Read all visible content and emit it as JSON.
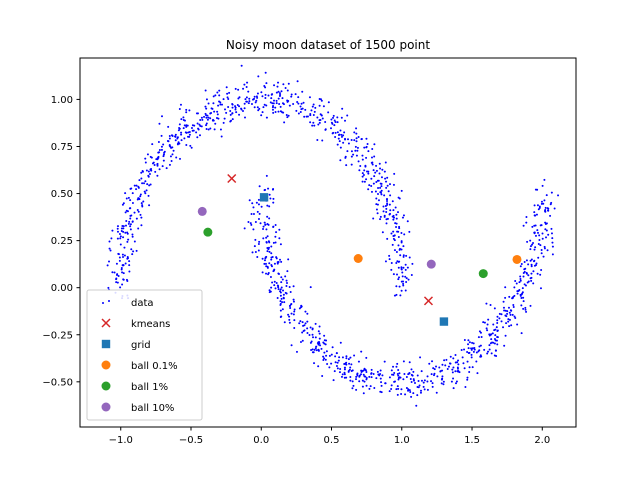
{
  "chart_data": {
    "type": "scatter",
    "title": "Noisy moon dataset of 1500 point",
    "xlabel": "",
    "ylabel": "",
    "xlim": [
      -1.29,
      2.24
    ],
    "ylim": [
      -0.74,
      1.22
    ],
    "x_ticks": [
      -1.0,
      -0.5,
      0.0,
      0.5,
      1.0,
      1.5,
      2.0
    ],
    "x_tick_labels": [
      "−1.0",
      "−0.5",
      "0.0",
      "0.5",
      "1.0",
      "1.5",
      "2.0"
    ],
    "y_ticks": [
      -0.5,
      -0.25,
      0.0,
      0.25,
      0.5,
      0.75,
      1.0
    ],
    "y_tick_labels": [
      "−0.50",
      "−0.25",
      "0.00",
      "0.25",
      "0.50",
      "0.75",
      "1.00"
    ],
    "grid": false,
    "legend_position": "lower-left",
    "data_series": {
      "name": "data",
      "color": "#0000ff",
      "marker": "dot",
      "count": 1500,
      "noise": 0.05,
      "upper_moon": {
        "center": [
          0.0,
          0.0
        ],
        "radius": 1.0,
        "angle_range_deg": [
          0,
          180
        ]
      },
      "lower_moon": {
        "center": [
          1.0,
          0.5
        ],
        "radius": 1.0,
        "angle_range_deg": [
          180,
          360
        ]
      }
    },
    "series": [
      {
        "name": "kmeans",
        "color": "#d62728",
        "marker": "x",
        "points": [
          [
            -0.21,
            0.58
          ],
          [
            1.19,
            -0.07
          ]
        ]
      },
      {
        "name": "grid",
        "color": "#1f77b4",
        "marker": "square",
        "points": [
          [
            0.02,
            0.48
          ],
          [
            1.3,
            -0.18
          ]
        ]
      },
      {
        "name": "ball 0.1%",
        "color": "#ff7f0e",
        "marker": "circle",
        "points": [
          [
            0.69,
            0.155
          ],
          [
            1.82,
            0.15
          ]
        ]
      },
      {
        "name": "ball 1%",
        "color": "#2ca02c",
        "marker": "circle",
        "points": [
          [
            -0.38,
            0.295
          ],
          [
            1.58,
            0.075
          ]
        ]
      },
      {
        "name": "ball 10%",
        "color": "#9467bd",
        "marker": "circle",
        "points": [
          [
            -0.42,
            0.405
          ],
          [
            1.21,
            0.125
          ]
        ]
      }
    ]
  }
}
